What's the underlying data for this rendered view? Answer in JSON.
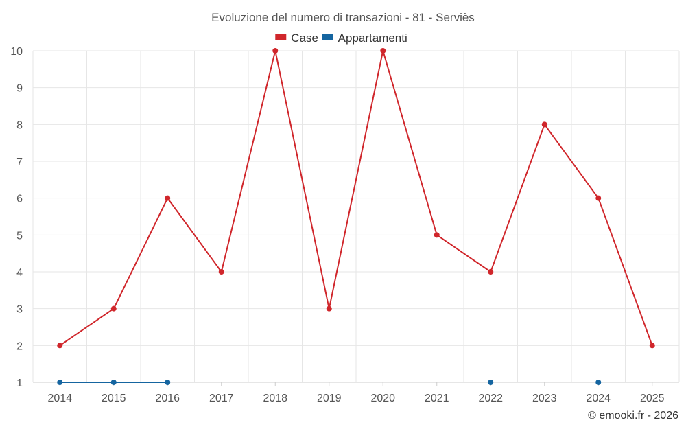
{
  "chart_data": {
    "type": "line",
    "title": "Evoluzione del numero di transazioni - 81 - Serviès",
    "categories": [
      "2014",
      "2015",
      "2016",
      "2017",
      "2018",
      "2019",
      "2020",
      "2021",
      "2022",
      "2023",
      "2024",
      "2025"
    ],
    "ylim": [
      1,
      10
    ],
    "yticks": [
      1,
      2,
      3,
      4,
      5,
      6,
      7,
      8,
      9,
      10
    ],
    "grid": true,
    "legend_position": "top-center",
    "series": [
      {
        "name": "Case",
        "color": "#d0262b",
        "values": [
          2,
          3,
          6,
          4,
          10,
          3,
          10,
          5,
          4,
          8,
          6,
          2
        ]
      },
      {
        "name": "Appartamenti",
        "color": "#1565a0",
        "values": [
          1,
          1,
          1,
          null,
          null,
          null,
          null,
          null,
          1,
          null,
          1,
          null
        ]
      }
    ],
    "credit": "© emooki.fr - 2026"
  }
}
